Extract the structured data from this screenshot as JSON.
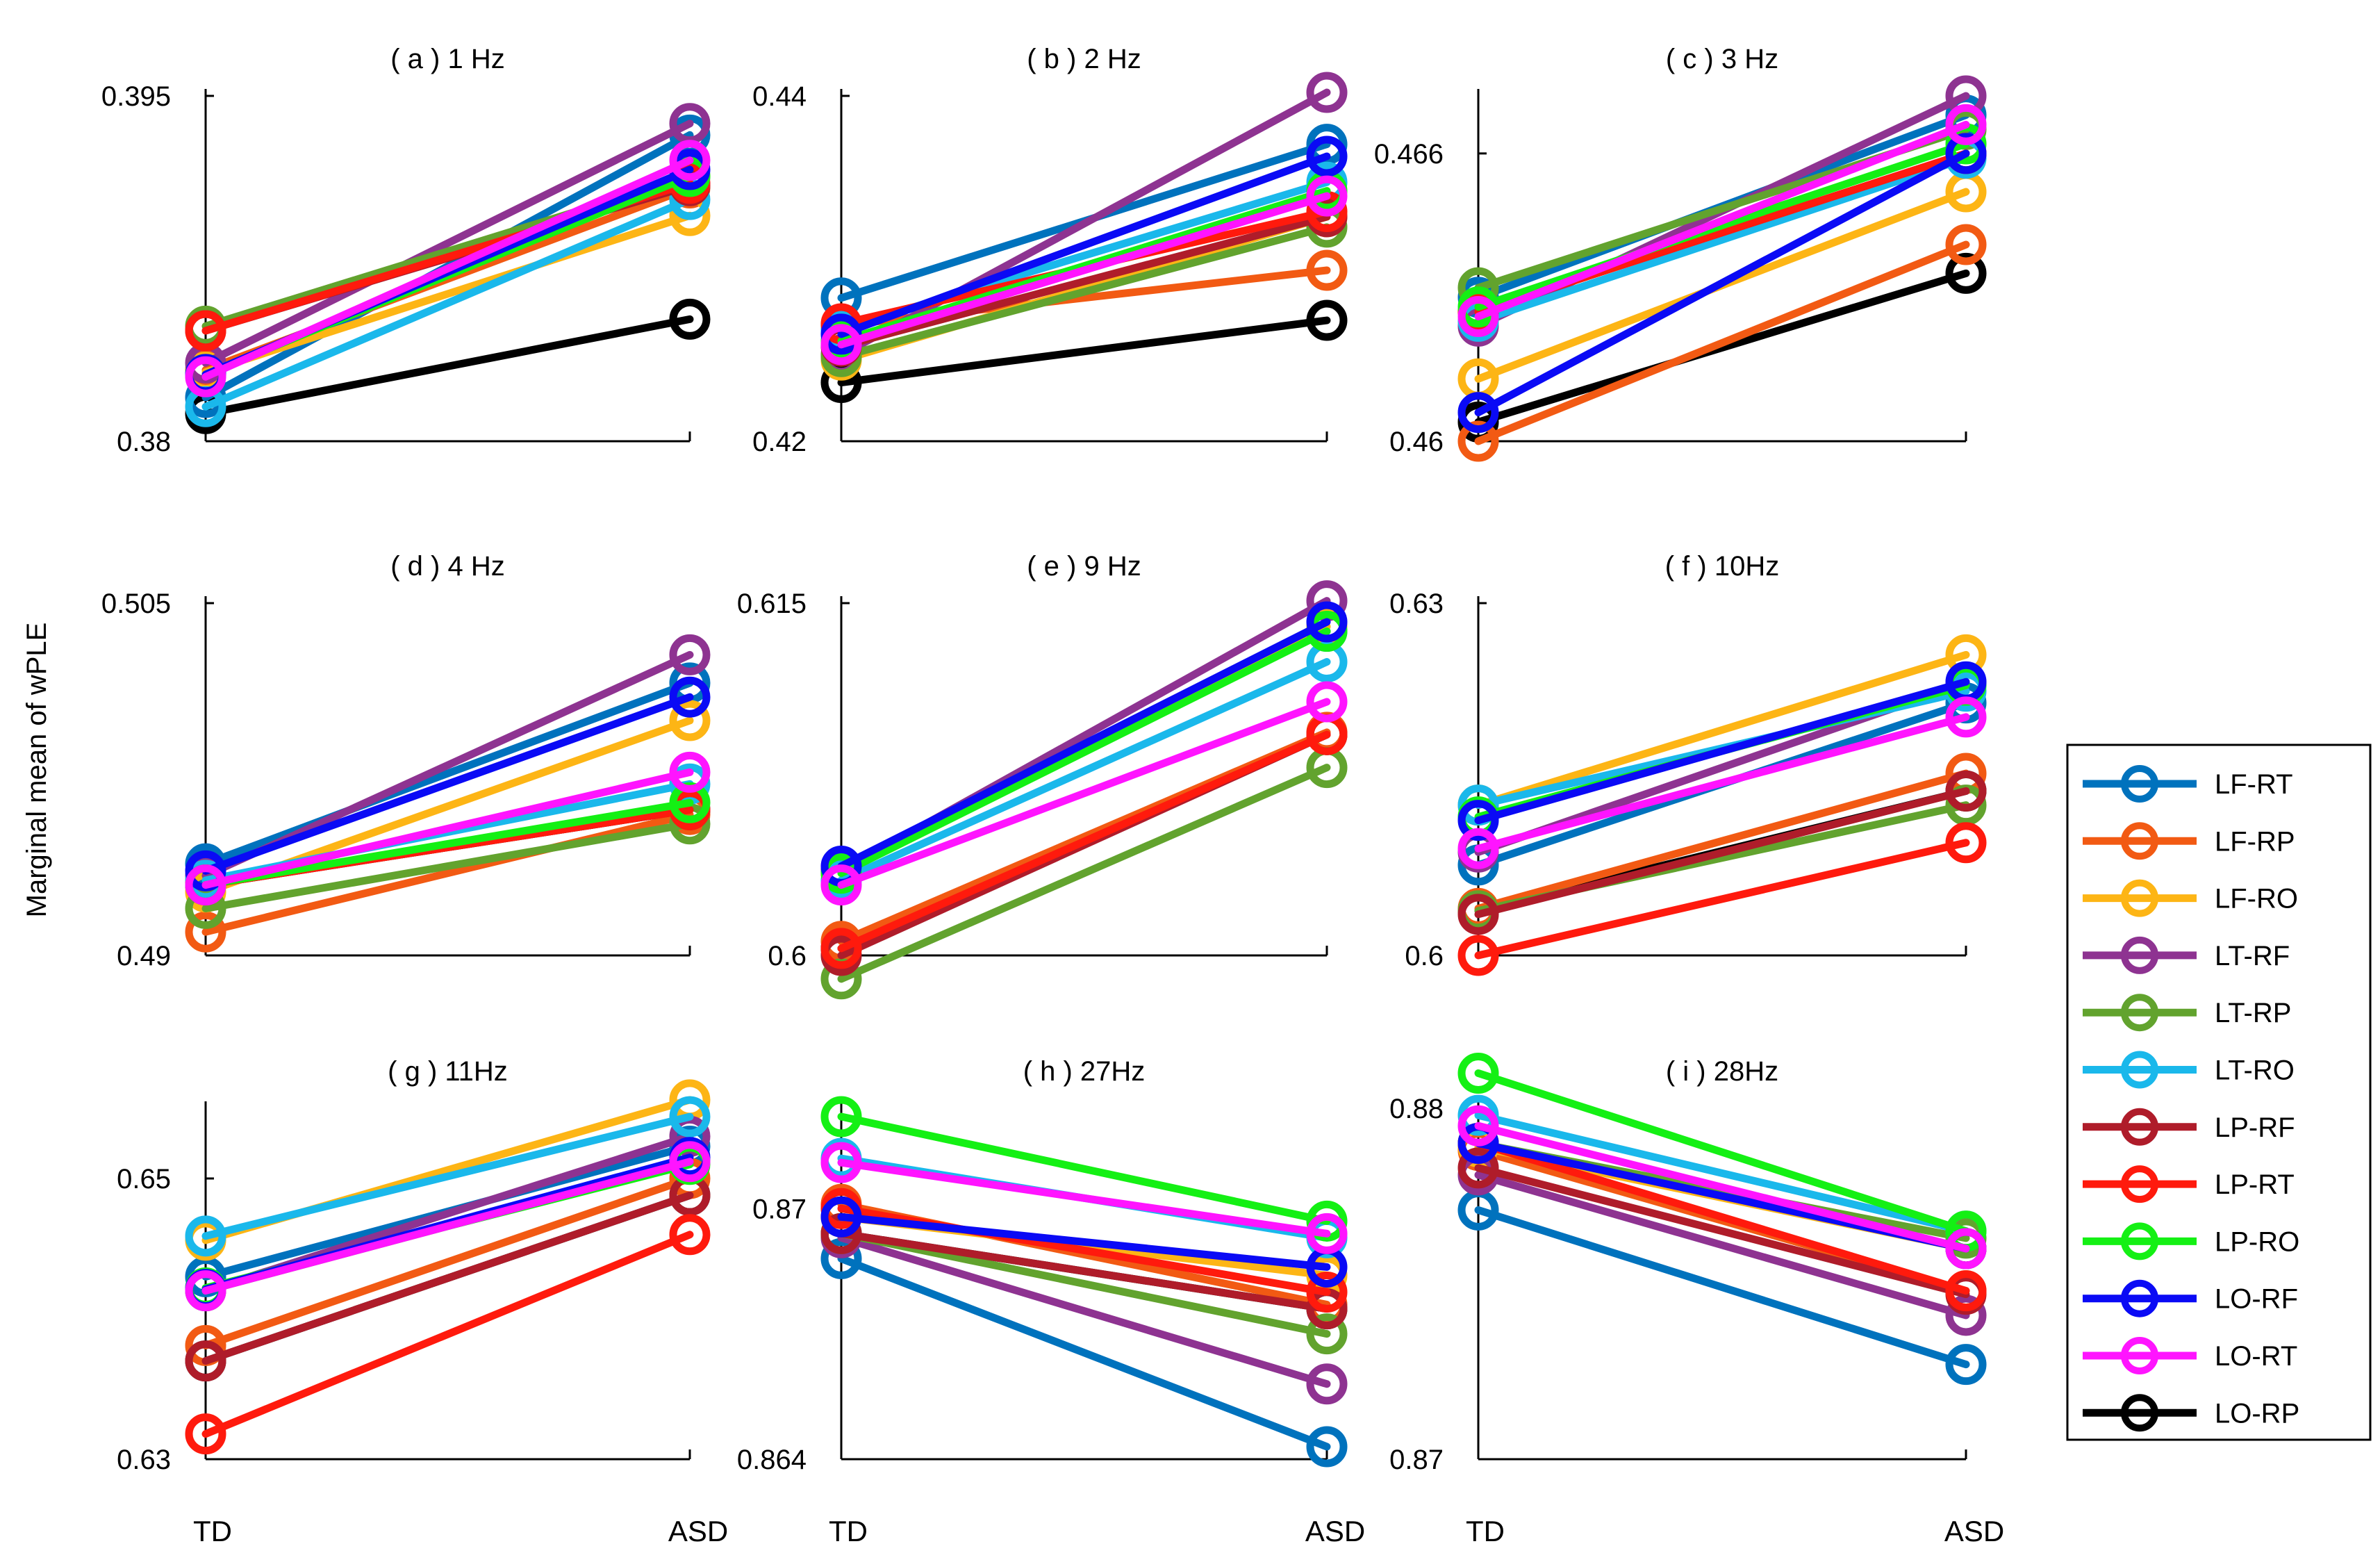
{
  "figure": {
    "ylabel": "Marginal mean of wPLE",
    "xcategories": [
      "TD",
      "ASD"
    ]
  },
  "legend": {
    "entries": [
      {
        "name": "LF-RT",
        "color": "#0072BD"
      },
      {
        "name": "LF-RP",
        "color": "#F25A13"
      },
      {
        "name": "LF-RO",
        "color": "#FDB515"
      },
      {
        "name": "LT-RF",
        "color": "#8E3391"
      },
      {
        "name": "LT-RP",
        "color": "#62A32E"
      },
      {
        "name": "LT-RO",
        "color": "#1AB8EB"
      },
      {
        "name": "LP-RF",
        "color": "#AF1C2A"
      },
      {
        "name": "LP-RT",
        "color": "#FF1A0D"
      },
      {
        "name": "LP-RO",
        "color": "#14F014"
      },
      {
        "name": "LO-RF",
        "color": "#0A0AF5"
      },
      {
        "name": "LO-RT",
        "color": "#FF14FF"
      },
      {
        "name": "LO-RP",
        "color": "#000000"
      }
    ]
  },
  "chart_data": [
    {
      "type": "line",
      "title": "( a ) 1 Hz",
      "categories": [
        "TD",
        "ASD"
      ],
      "ylim": [
        0.38,
        0.395
      ],
      "yticks": [
        "0.38",
        "0.395"
      ],
      "series": [
        {
          "name": "LF-RT",
          "values": [
            0.3819,
            0.3933
          ]
        },
        {
          "name": "LF-RP",
          "values": [
            0.3831,
            0.391
          ]
        },
        {
          "name": "LF-RO",
          "values": [
            0.383,
            0.3898
          ]
        },
        {
          "name": "LT-RF",
          "values": [
            0.3834,
            0.3938
          ]
        },
        {
          "name": "LT-RP",
          "values": [
            0.385,
            0.3915
          ]
        },
        {
          "name": "LT-RO",
          "values": [
            0.3815,
            0.3905
          ]
        },
        {
          "name": "LP-RF",
          "values": [
            0.3848,
            0.3911
          ]
        },
        {
          "name": "LP-RT",
          "values": [
            0.3848,
            0.3912
          ]
        },
        {
          "name": "LP-RO",
          "values": [
            0.3829,
            0.3915
          ]
        },
        {
          "name": "LO-RF",
          "values": [
            0.3829,
            0.3918
          ]
        },
        {
          "name": "LO-RT",
          "values": [
            0.3828,
            0.3922
          ]
        },
        {
          "name": "LO-RP",
          "values": [
            0.3812,
            0.3853
          ]
        }
      ]
    },
    {
      "type": "line",
      "title": "( b ) 2 Hz",
      "categories": [
        "TD",
        "ASD"
      ],
      "ylim": [
        0.42,
        0.44
      ],
      "yticks": [
        "0.42",
        "0.44"
      ],
      "series": [
        {
          "name": "LF-RT",
          "values": [
            0.4283,
            0.4372
          ]
        },
        {
          "name": "LF-RP",
          "values": [
            0.4267,
            0.4299
          ]
        },
        {
          "name": "LF-RO",
          "values": [
            0.4247,
            0.433
          ]
        },
        {
          "name": "LT-RF",
          "values": [
            0.425,
            0.4402
          ]
        },
        {
          "name": "LT-RP",
          "values": [
            0.4249,
            0.4324
          ]
        },
        {
          "name": "LT-RO",
          "values": [
            0.4265,
            0.435
          ]
        },
        {
          "name": "LP-RF",
          "values": [
            0.4255,
            0.433
          ]
        },
        {
          "name": "LP-RT",
          "values": [
            0.4268,
            0.4333
          ]
        },
        {
          "name": "LP-RO",
          "values": [
            0.4258,
            0.4345
          ]
        },
        {
          "name": "LO-RF",
          "values": [
            0.4262,
            0.4365
          ]
        },
        {
          "name": "LO-RT",
          "values": [
            0.4256,
            0.4342
          ]
        },
        {
          "name": "LO-RP",
          "values": [
            0.4234,
            0.427
          ]
        }
      ]
    },
    {
      "type": "line",
      "title": "( c ) 3 Hz",
      "categories": [
        "TD",
        "ASD"
      ],
      "ylim": [
        0.46,
        0.4672
      ],
      "yticks": [
        "0.46",
        "0.466"
      ],
      "series": [
        {
          "name": "LF-RT",
          "values": [
            0.463,
            0.4668
          ]
        },
        {
          "name": "LF-RP",
          "values": [
            0.46,
            0.4641
          ]
        },
        {
          "name": "LF-RO",
          "values": [
            0.4613,
            0.4652
          ]
        },
        {
          "name": "LT-RF",
          "values": [
            0.4624,
            0.4672
          ]
        },
        {
          "name": "LT-RP",
          "values": [
            0.4632,
            0.4665
          ]
        },
        {
          "name": "LT-RO",
          "values": [
            0.4625,
            0.4659
          ]
        },
        {
          "name": "LP-RF",
          "values": [
            0.4627,
            0.466
          ]
        },
        {
          "name": "LP-RT",
          "values": [
            0.4627,
            0.466
          ]
        },
        {
          "name": "LP-RO",
          "values": [
            0.4628,
            0.4662
          ]
        },
        {
          "name": "LO-RF",
          "values": [
            0.4606,
            0.466
          ]
        },
        {
          "name": "LO-RT",
          "values": [
            0.4626,
            0.4666
          ]
        },
        {
          "name": "LO-RP",
          "values": [
            0.4604,
            0.4635
          ]
        }
      ]
    },
    {
      "type": "line",
      "title": "( d ) 4 Hz",
      "categories": [
        "TD",
        "ASD"
      ],
      "ylim": [
        0.49,
        0.505
      ],
      "yticks": [
        "0.49",
        "0.505"
      ],
      "series": [
        {
          "name": "LF-RT",
          "values": [
            0.4939,
            0.5016
          ]
        },
        {
          "name": "LF-RP",
          "values": [
            0.491,
            0.496
          ]
        },
        {
          "name": "LF-RO",
          "values": [
            0.4927,
            0.5
          ]
        },
        {
          "name": "LT-RF",
          "values": [
            0.4934,
            0.5028
          ]
        },
        {
          "name": "LT-RP",
          "values": [
            0.492,
            0.4956
          ]
        },
        {
          "name": "LT-RO",
          "values": [
            0.4932,
            0.4973
          ]
        },
        {
          "name": "LP-RF",
          "values": [
            0.493,
            0.4962
          ]
        },
        {
          "name": "LP-RT",
          "values": [
            0.493,
            0.4962
          ]
        },
        {
          "name": "LP-RO",
          "values": [
            0.493,
            0.4965
          ]
        },
        {
          "name": "LO-RF",
          "values": [
            0.4936,
            0.501
          ]
        },
        {
          "name": "LO-RT",
          "values": [
            0.493,
            0.4978
          ]
        },
        {
          "name": "LO-RP",
          "values": [
            0.493,
            0.4962
          ]
        }
      ]
    },
    {
      "type": "line",
      "title": "( e ) 9 Hz",
      "categories": [
        "TD",
        "ASD"
      ],
      "ylim": [
        0.6,
        0.615
      ],
      "yticks": [
        "0.6",
        "0.615"
      ],
      "series": [
        {
          "name": "LF-RT",
          "values": [
            0.6036,
            0.6138
          ]
        },
        {
          "name": "LF-RP",
          "values": [
            0.6006,
            0.6095
          ]
        },
        {
          "name": "LF-RO",
          "values": [
            0.6035,
            0.614
          ]
        },
        {
          "name": "LT-RF",
          "values": [
            0.6036,
            0.6151
          ]
        },
        {
          "name": "LT-RP",
          "values": [
            0.599,
            0.608
          ]
        },
        {
          "name": "LT-RO",
          "values": [
            0.6032,
            0.6125
          ]
        },
        {
          "name": "LP-RF",
          "values": [
            0.6,
            0.6094
          ]
        },
        {
          "name": "LP-RT",
          "values": [
            0.6003,
            0.6094
          ]
        },
        {
          "name": "LP-RO",
          "values": [
            0.6035,
            0.6138
          ]
        },
        {
          "name": "LO-RF",
          "values": [
            0.6038,
            0.6142
          ]
        },
        {
          "name": "LO-RT",
          "values": [
            0.603,
            0.6108
          ]
        },
        {
          "name": "LO-RP",
          "values": [
            0.6003,
            0.6094
          ]
        }
      ]
    },
    {
      "type": "line",
      "title": "( f ) 10Hz",
      "categories": [
        "TD",
        "ASD"
      ],
      "ylim": [
        0.6,
        0.63
      ],
      "yticks": [
        "0.6",
        "0.63"
      ],
      "series": [
        {
          "name": "LF-RT",
          "values": [
            0.6077,
            0.6215
          ]
        },
        {
          "name": "LF-RP",
          "values": [
            0.604,
            0.6155
          ]
        },
        {
          "name": "LF-RO",
          "values": [
            0.6128,
            0.6256
          ]
        },
        {
          "name": "LT-RF",
          "values": [
            0.6088,
            0.6232
          ]
        },
        {
          "name": "LT-RP",
          "values": [
            0.6038,
            0.6128
          ]
        },
        {
          "name": "LT-RO",
          "values": [
            0.6128,
            0.6225
          ]
        },
        {
          "name": "LP-RF",
          "values": [
            0.6035,
            0.614
          ]
        },
        {
          "name": "LP-RT",
          "values": [
            0.6,
            0.6096
          ]
        },
        {
          "name": "LP-RO",
          "values": [
            0.6118,
            0.623
          ]
        },
        {
          "name": "LO-RF",
          "values": [
            0.6115,
            0.6233
          ]
        },
        {
          "name": "LO-RT",
          "values": [
            0.6091,
            0.6203
          ]
        },
        {
          "name": "LO-RP",
          "values": [
            0.6038,
            0.614
          ]
        }
      ]
    },
    {
      "type": "line",
      "title": "( g ) 11Hz",
      "categories": [
        "TD",
        "ASD"
      ],
      "ylim": [
        0.63,
        0.655
      ],
      "yticks": [
        "0.63",
        "0.65"
      ],
      "series": [
        {
          "name": "LF-RT",
          "values": [
            0.643,
            0.6523
          ]
        },
        {
          "name": "LF-RP",
          "values": [
            0.6381,
            0.65
          ]
        },
        {
          "name": "LF-RO",
          "values": [
            0.6456,
            0.6556
          ]
        },
        {
          "name": "LT-RF",
          "values": [
            0.642,
            0.653
          ]
        },
        {
          "name": "LT-RP",
          "values": [
            0.642,
            0.6512
          ]
        },
        {
          "name": "LT-RO",
          "values": [
            0.6459,
            0.6544
          ]
        },
        {
          "name": "LP-RF",
          "values": [
            0.637,
            0.6488
          ]
        },
        {
          "name": "LP-RT",
          "values": [
            0.6318,
            0.646
          ]
        },
        {
          "name": "LP-RO",
          "values": [
            0.6422,
            0.651
          ]
        },
        {
          "name": "LO-RF",
          "values": [
            0.6421,
            0.6515
          ]
        },
        {
          "name": "LO-RT",
          "values": [
            0.642,
            0.6512
          ]
        },
        {
          "name": "LO-RP",
          "values": [
            0.637,
            0.6488
          ]
        }
      ]
    },
    {
      "type": "line",
      "title": "( h ) 27Hz",
      "categories": [
        "TD",
        "ASD"
      ],
      "ylim": [
        0.864,
        0.8724
      ],
      "yticks": [
        "0.864",
        "0.87"
      ],
      "series": [
        {
          "name": "LF-RT",
          "values": [
            0.8688,
            0.8643
          ]
        },
        {
          "name": "LF-RP",
          "values": [
            0.8701,
            0.8677
          ]
        },
        {
          "name": "LF-RO",
          "values": [
            0.8698,
            0.8684
          ]
        },
        {
          "name": "LT-RF",
          "values": [
            0.8693,
            0.8658
          ]
        },
        {
          "name": "LT-RP",
          "values": [
            0.8694,
            0.867
          ]
        },
        {
          "name": "LT-RO",
          "values": [
            0.8712,
            0.8693
          ]
        },
        {
          "name": "LP-RF",
          "values": [
            0.8694,
            0.8676
          ]
        },
        {
          "name": "LP-RT",
          "values": [
            0.87,
            0.868
          ]
        },
        {
          "name": "LP-RO",
          "values": [
            0.8722,
            0.8697
          ]
        },
        {
          "name": "LO-RF",
          "values": [
            0.8698,
            0.8686
          ]
        },
        {
          "name": "LO-RT",
          "values": [
            0.8711,
            0.8694
          ]
        },
        {
          "name": "LO-RP",
          "values": [
            0.8694,
            0.8676
          ]
        }
      ]
    },
    {
      "type": "line",
      "title": "( i ) 28Hz",
      "categories": [
        "TD",
        "ASD"
      ],
      "ylim": [
        0.87,
        0.88
      ],
      "yticks": [
        "0.87",
        "0.88"
      ],
      "series": [
        {
          "name": "LF-RT",
          "values": [
            0.8771,
            0.8727
          ]
        },
        {
          "name": "LF-RP",
          "values": [
            0.8788,
            0.8748
          ]
        },
        {
          "name": "LF-RO",
          "values": [
            0.8789,
            0.876
          ]
        },
        {
          "name": "LT-RF",
          "values": [
            0.8781,
            0.8741
          ]
        },
        {
          "name": "LT-RP",
          "values": [
            0.879,
            0.8763
          ]
        },
        {
          "name": "LT-RO",
          "values": [
            0.8798,
            0.8765
          ]
        },
        {
          "name": "LP-RF",
          "values": [
            0.8783,
            0.8747
          ]
        },
        {
          "name": "LP-RT",
          "values": [
            0.879,
            0.8748
          ]
        },
        {
          "name": "LP-RO",
          "values": [
            0.881,
            0.8765
          ]
        },
        {
          "name": "LO-RF",
          "values": [
            0.879,
            0.876
          ]
        },
        {
          "name": "LO-RT",
          "values": [
            0.8795,
            0.876
          ]
        },
        {
          "name": "LO-RP",
          "values": [
            0.879,
            0.876
          ]
        }
      ]
    }
  ]
}
